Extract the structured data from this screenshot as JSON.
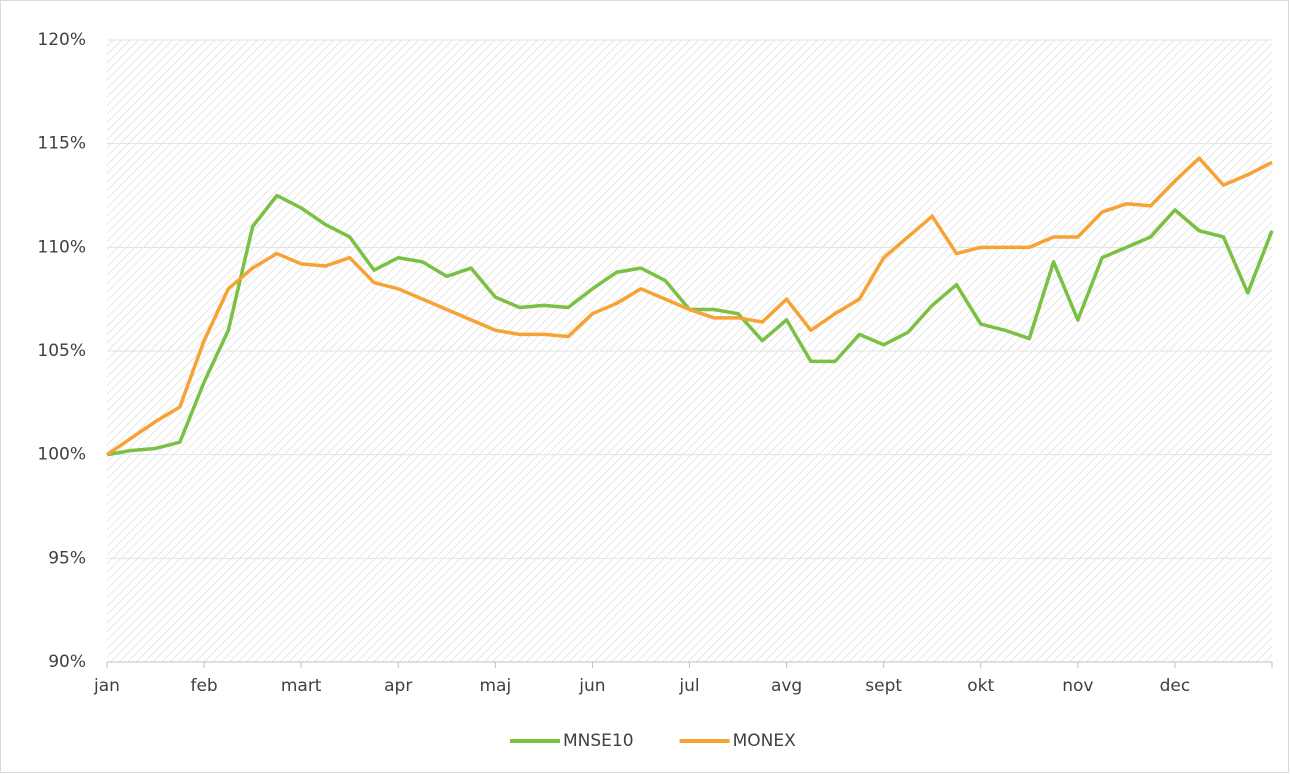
{
  "chart_data": {
    "type": "line",
    "categories": [
      "jan",
      null,
      null,
      null,
      "feb",
      null,
      null,
      null,
      "mart",
      null,
      null,
      null,
      "apr",
      null,
      null,
      null,
      "maj",
      null,
      null,
      null,
      "jun",
      null,
      null,
      null,
      "jul",
      null,
      null,
      null,
      "avg",
      null,
      null,
      null,
      "sept",
      null,
      null,
      null,
      "okt",
      null,
      null,
      null,
      "nov",
      null,
      null,
      null,
      "dec",
      null,
      null,
      null,
      null
    ],
    "series": [
      {
        "name": "MNSE10",
        "color": "#7ac143",
        "values": [
          100,
          100.2,
          100.3,
          100.6,
          103.5,
          106,
          111,
          112.5,
          111.9,
          111.1,
          110.5,
          108.9,
          109.5,
          109.3,
          108.6,
          109,
          107.6,
          107.1,
          107.2,
          107.1,
          108,
          108.8,
          109,
          108.4,
          107,
          107,
          106.8,
          105.5,
          106.5,
          104.5,
          104.5,
          105.8,
          105.3,
          105.9,
          107.2,
          108.2,
          106.3,
          106,
          105.6,
          109.3,
          106.5,
          109.5,
          110,
          110.5,
          111.8,
          110.8,
          110.5,
          107.8,
          110.8
        ]
      },
      {
        "name": "MONEX",
        "color": "#f7a234",
        "values": [
          100,
          100.8,
          101.6,
          102.3,
          105.5,
          108,
          109,
          109.7,
          109.2,
          109.1,
          109.5,
          108.3,
          108,
          107.5,
          107,
          106.5,
          106,
          105.8,
          105.8,
          105.7,
          106.8,
          107.3,
          108,
          107.5,
          107,
          106.6,
          106.6,
          106.4,
          107.5,
          106,
          106.8,
          107.5,
          109.5,
          110.5,
          111.5,
          109.7,
          110,
          110,
          110,
          110.5,
          110.5,
          111.7,
          112.1,
          112,
          113.2,
          114.3,
          113,
          113.5,
          114.1
        ]
      }
    ],
    "ylim": [
      90,
      120
    ],
    "yticks": [
      {
        "value": 90,
        "label": "90%"
      },
      {
        "value": 95,
        "label": "95%"
      },
      {
        "value": 100,
        "label": "100%"
      },
      {
        "value": 105,
        "label": "105%"
      },
      {
        "value": 110,
        "label": "110%"
      },
      {
        "value": 115,
        "label": "115%"
      },
      {
        "value": 120,
        "label": "120%"
      }
    ],
    "grid": true,
    "legend": "bottom"
  }
}
